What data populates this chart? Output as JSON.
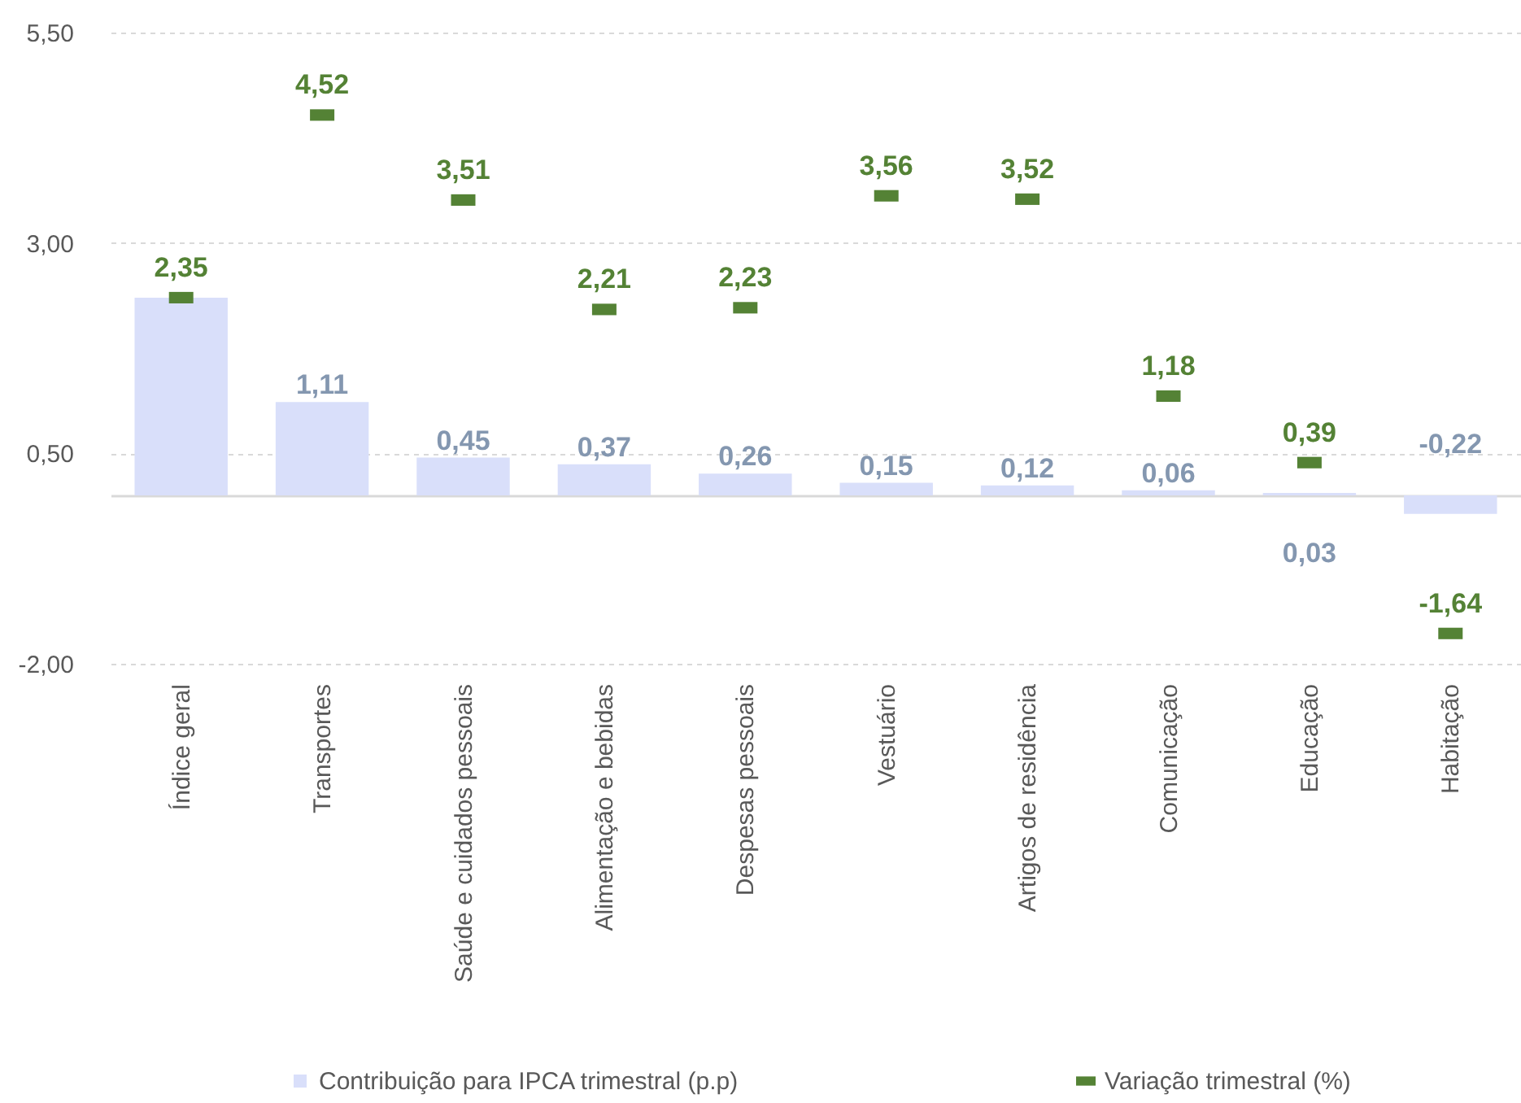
{
  "chart_data": {
    "type": "bar",
    "categories": [
      "Índice geral",
      "Transportes",
      "Saúde e cuidados pessoais",
      "Alimentação e bebidas",
      "Despesas pessoais",
      "Vestuário",
      "Artigos de residência",
      "Comunicação",
      "Educação",
      "Habitação"
    ],
    "series": [
      {
        "name": "Contribuição para IPCA trimestral (p.p)",
        "color": "#d9dffa",
        "values": [
          2.35,
          1.11,
          0.45,
          0.37,
          0.26,
          0.15,
          0.12,
          0.06,
          0.03,
          -0.22
        ],
        "value_labels": [
          null,
          "1,11",
          "0,45",
          "0,37",
          "0,26",
          "0,15",
          "0,12",
          "0,06",
          "0,03",
          "-0,22"
        ]
      },
      {
        "name": "Variação trimestral (%)",
        "type": "scatter",
        "color": "#548235",
        "values": [
          2.35,
          4.52,
          3.51,
          2.21,
          2.23,
          3.56,
          3.52,
          1.18,
          0.39,
          -1.64
        ],
        "value_labels": [
          "2,35",
          "4,52",
          "3,51",
          "2,21",
          "2,23",
          "3,56",
          "3,52",
          "1,18",
          "0,39",
          "-1,64"
        ]
      }
    ],
    "ylim": [
      -2,
      5.5
    ],
    "yticks": [
      {
        "value": 5.5,
        "label": "5,50"
      },
      {
        "value": 3,
        "label": "3,00"
      },
      {
        "value": 0.5,
        "label": "0,50"
      },
      {
        "value": -2,
        "label": "-2,00"
      }
    ],
    "grid": "y",
    "legend": "bottom"
  }
}
